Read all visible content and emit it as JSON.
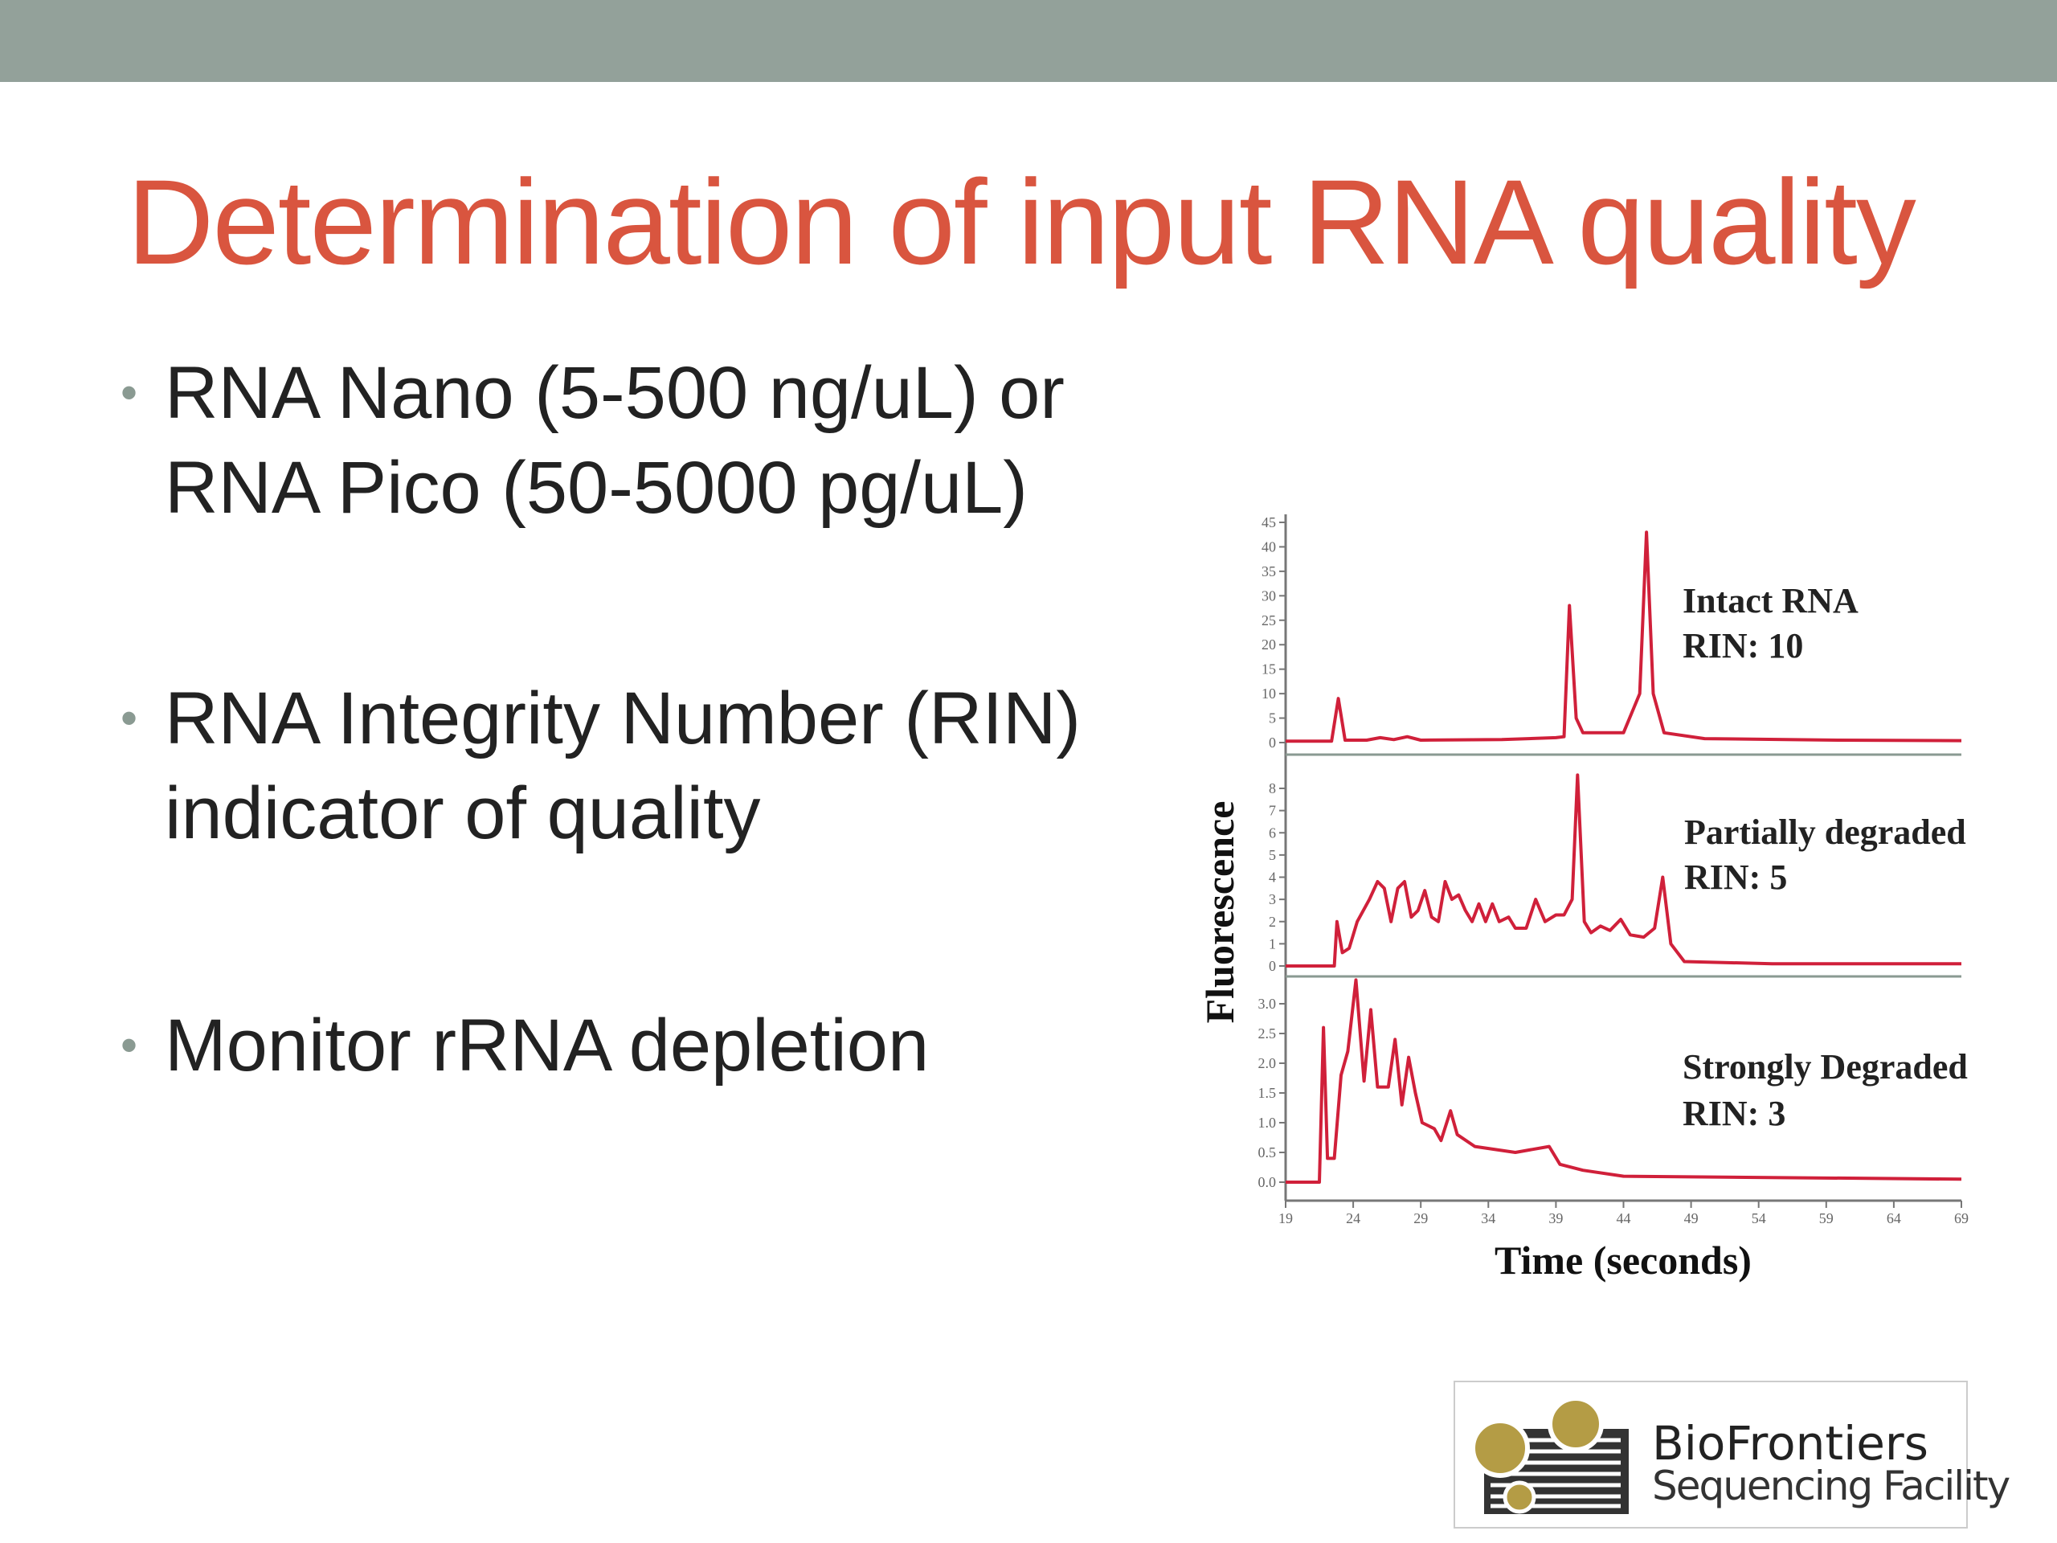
{
  "slide": {
    "title": "Determination of input RNA quality",
    "bullets": [
      {
        "lines": [
          "RNA Nano (5-500 ng/uL) or",
          "RNA Pico (50-5000 pg/uL)"
        ]
      },
      {
        "lines": [
          "RNA Integrity Number (RIN)",
          "indicator of quality"
        ]
      },
      {
        "lines": [
          "Monitor rRNA depletion"
        ]
      }
    ],
    "colors": {
      "header_bar": "#93a19a",
      "title": "#d9553f",
      "trace": "#d0203a",
      "logo_gold": "#b49c45"
    }
  },
  "logo": {
    "line1": "BioFrontiers",
    "line2": "Sequencing Facility"
  },
  "chart_data": {
    "type": "line",
    "xlabel": "Time (seconds)",
    "ylabel": "Fluorescence",
    "xlim": [
      19,
      69
    ],
    "xticks": [
      "19",
      "24",
      "29",
      "34",
      "39",
      "44",
      "49",
      "54",
      "59",
      "64",
      "69"
    ],
    "grid": false,
    "panels": [
      {
        "annotation": [
          "Intact RNA",
          "RIN: 10"
        ],
        "ylim": [
          0,
          45
        ],
        "yticks": [
          "0",
          "5",
          "10",
          "15",
          "20",
          "25",
          "30",
          "35",
          "40",
          "45"
        ],
        "points": [
          [
            19,
            0.3
          ],
          [
            22.4,
            0.3
          ],
          [
            22.9,
            9
          ],
          [
            23.4,
            0.5
          ],
          [
            25,
            0.5
          ],
          [
            26,
            1
          ],
          [
            27,
            0.6
          ],
          [
            28,
            1.2
          ],
          [
            29,
            0.5
          ],
          [
            35,
            0.6
          ],
          [
            39,
            1
          ],
          [
            39.6,
            1.2
          ],
          [
            40,
            28
          ],
          [
            40.5,
            5
          ],
          [
            41,
            2
          ],
          [
            42,
            2
          ],
          [
            44,
            2
          ],
          [
            45.2,
            10
          ],
          [
            45.7,
            43
          ],
          [
            46.2,
            10
          ],
          [
            47,
            2
          ],
          [
            50,
            0.8
          ],
          [
            60,
            0.5
          ],
          [
            69,
            0.4
          ]
        ]
      },
      {
        "annotation": [
          "Partially degraded",
          "RIN: 5"
        ],
        "ylim": [
          0,
          8
        ],
        "yticks": [
          "0",
          "1",
          "2",
          "3",
          "4",
          "5",
          "6",
          "7",
          "8"
        ],
        "points": [
          [
            19,
            0
          ],
          [
            22.6,
            0
          ],
          [
            22.8,
            2
          ],
          [
            23.2,
            0.6
          ],
          [
            23.7,
            0.8
          ],
          [
            24.3,
            2
          ],
          [
            25.2,
            3
          ],
          [
            25.8,
            3.8
          ],
          [
            26.3,
            3.5
          ],
          [
            26.8,
            2
          ],
          [
            27.3,
            3.5
          ],
          [
            27.8,
            3.8
          ],
          [
            28.3,
            2.2
          ],
          [
            28.8,
            2.5
          ],
          [
            29.3,
            3.4
          ],
          [
            29.8,
            2.2
          ],
          [
            30.3,
            2
          ],
          [
            30.8,
            3.8
          ],
          [
            31.3,
            3
          ],
          [
            31.8,
            3.2
          ],
          [
            32.3,
            2.5
          ],
          [
            32.8,
            2
          ],
          [
            33.3,
            2.8
          ],
          [
            33.8,
            2
          ],
          [
            34.3,
            2.8
          ],
          [
            34.8,
            2
          ],
          [
            35.5,
            2.2
          ],
          [
            36,
            1.7
          ],
          [
            36.8,
            1.7
          ],
          [
            37.5,
            3
          ],
          [
            38.2,
            2
          ],
          [
            39,
            2.3
          ],
          [
            39.6,
            2.3
          ],
          [
            40.2,
            3
          ],
          [
            40.6,
            8.6
          ],
          [
            41.1,
            2
          ],
          [
            41.6,
            1.5
          ],
          [
            42.3,
            1.8
          ],
          [
            43,
            1.6
          ],
          [
            43.8,
            2.1
          ],
          [
            44.5,
            1.4
          ],
          [
            45.5,
            1.3
          ],
          [
            46.3,
            1.7
          ],
          [
            46.9,
            4
          ],
          [
            47.5,
            1
          ],
          [
            48.5,
            0.2
          ],
          [
            55,
            0.1
          ],
          [
            69,
            0.1
          ]
        ]
      },
      {
        "annotation": [
          "Strongly Degraded",
          "RIN: 3"
        ],
        "ylim": [
          0,
          3.0
        ],
        "yticks": [
          "0.0",
          "0.5",
          "1.0",
          "1.5",
          "2.0",
          "2.5",
          "3.0"
        ],
        "points": [
          [
            19,
            0
          ],
          [
            21.5,
            0
          ],
          [
            21.8,
            2.6
          ],
          [
            22.1,
            0.4
          ],
          [
            22.6,
            0.4
          ],
          [
            23.1,
            1.8
          ],
          [
            23.6,
            2.2
          ],
          [
            24.2,
            3.4
          ],
          [
            24.8,
            1.7
          ],
          [
            25.3,
            2.9
          ],
          [
            25.8,
            1.6
          ],
          [
            26.6,
            1.6
          ],
          [
            27.1,
            2.4
          ],
          [
            27.6,
            1.3
          ],
          [
            28.1,
            2.1
          ],
          [
            28.6,
            1.5
          ],
          [
            29.1,
            1
          ],
          [
            30,
            0.9
          ],
          [
            30.5,
            0.7
          ],
          [
            31.2,
            1.2
          ],
          [
            31.7,
            0.8
          ],
          [
            33,
            0.6
          ],
          [
            36,
            0.5
          ],
          [
            38.5,
            0.6
          ],
          [
            39.3,
            0.3
          ],
          [
            41,
            0.2
          ],
          [
            44,
            0.1
          ],
          [
            69,
            0.05
          ]
        ]
      }
    ]
  }
}
